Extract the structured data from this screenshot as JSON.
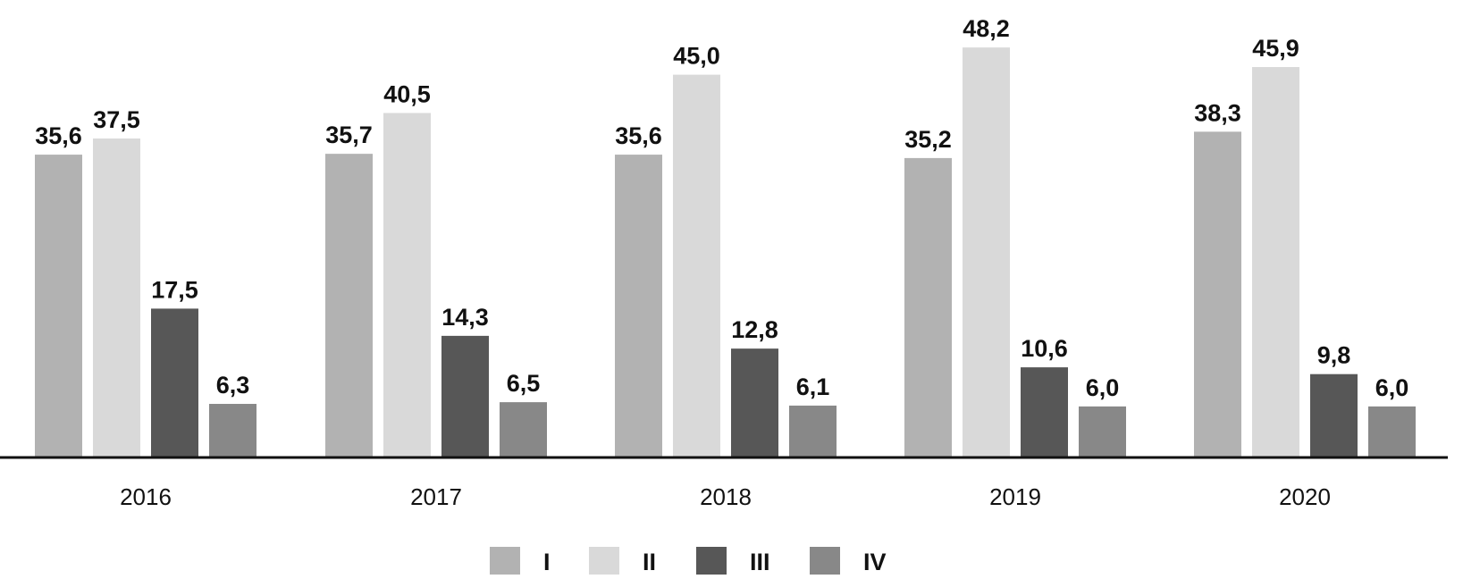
{
  "chart_data": {
    "type": "bar",
    "categories": [
      "2016",
      "2017",
      "2018",
      "2019",
      "2020"
    ],
    "series": [
      {
        "name": "I",
        "color": "#b2b2b2",
        "values": [
          35.6,
          35.7,
          35.6,
          35.2,
          38.3
        ],
        "labels": [
          "35,6",
          "35,7",
          "35,6",
          "35,2",
          "38,3"
        ]
      },
      {
        "name": "II",
        "color": "#d9d9d9",
        "values": [
          37.5,
          40.5,
          45.0,
          48.2,
          45.9
        ],
        "labels": [
          "37,5",
          "40,5",
          "45,0",
          "48,2",
          "45,9"
        ]
      },
      {
        "name": "III",
        "color": "#575757",
        "values": [
          17.5,
          14.3,
          12.8,
          10.6,
          9.8
        ],
        "labels": [
          "17,5",
          "14,3",
          "12,8",
          "10,6",
          "9,8"
        ]
      },
      {
        "name": "IV",
        "color": "#888888",
        "values": [
          6.3,
          6.5,
          6.1,
          6.0,
          6.0
        ],
        "labels": [
          "6,3",
          "6,5",
          "6,1",
          "6,0",
          "6,0"
        ]
      }
    ],
    "title": "",
    "xlabel": "",
    "ylabel": "",
    "ylim": [
      0,
      50
    ],
    "grid": false,
    "legend_position": "bottom-center"
  }
}
